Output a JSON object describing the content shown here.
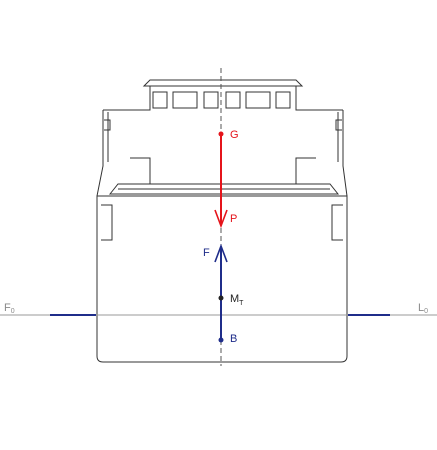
{
  "labels": {
    "g": "G",
    "p": "P",
    "f": "F",
    "mt_main": "M",
    "mt_sub": "T",
    "b": "B",
    "f0_main": "F",
    "f0_sub": "0",
    "l0_main": "L",
    "l0_sub": "0"
  },
  "colors": {
    "hull": "#333333",
    "waterline": "#999999",
    "waterline_marks": "#1f2d8a",
    "weight": "#e5141b",
    "buoyancy": "#1f2d8a",
    "label_gray": "#8a8a8a",
    "mt": "#222222"
  }
}
